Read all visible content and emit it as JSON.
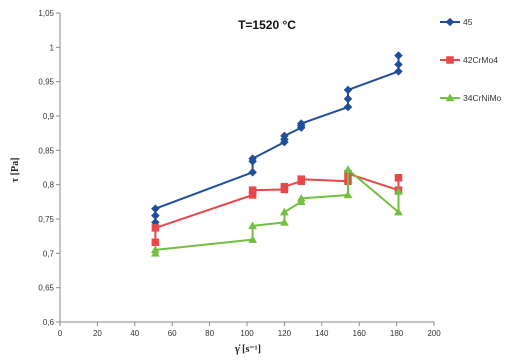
{
  "chart_data": {
    "type": "line",
    "title": "T=1520 °C",
    "xlabel": "γ̇  [s⁻¹]",
    "ylabel": "τ [Pa]",
    "xlim": [
      0,
      200
    ],
    "ylim": [
      0.6,
      1.05
    ],
    "xticks": [
      0,
      20,
      40,
      60,
      80,
      100,
      120,
      140,
      160,
      180,
      200
    ],
    "xtick_labels": [
      "0",
      "20",
      "40",
      "60",
      "80",
      "100",
      "120",
      "140",
      "160",
      "180",
      "200"
    ],
    "yticks": [
      0.6,
      0.65,
      0.7,
      0.75,
      0.8,
      0.85,
      0.9,
      0.95,
      1.0,
      1.05
    ],
    "ytick_labels": [
      "0,6",
      "0,65",
      "0,7",
      "0,75",
      "0,8",
      "0,85",
      "0,9",
      "0,95",
      "1",
      "1,05"
    ],
    "grid": false,
    "legend": "right",
    "series": [
      {
        "name": "45",
        "color": "#1F4E9B",
        "marker": "diamond",
        "x": [
          51,
          51,
          51,
          103,
          103,
          103,
          120,
          120,
          120,
          129,
          129,
          129,
          154,
          154,
          154,
          181,
          181,
          181
        ],
        "y": [
          0.745,
          0.755,
          0.765,
          0.818,
          0.834,
          0.838,
          0.862,
          0.866,
          0.871,
          0.883,
          0.886,
          0.889,
          0.913,
          0.925,
          0.938,
          0.965,
          0.975,
          0.988
        ]
      },
      {
        "name": "42CrMo4",
        "color": "#E8474B",
        "marker": "square",
        "x": [
          51,
          51,
          103,
          103,
          120,
          120,
          129,
          129,
          154,
          154,
          181,
          181
        ],
        "y": [
          0.716,
          0.737,
          0.785,
          0.792,
          0.793,
          0.797,
          0.805,
          0.808,
          0.805,
          0.816,
          0.792,
          0.81
        ]
      },
      {
        "name": "34CrNiMo",
        "color": "#72BF44",
        "marker": "triangle",
        "x": [
          51,
          51,
          103,
          103,
          120,
          120,
          129,
          129,
          154,
          154,
          181,
          181
        ],
        "y": [
          0.7,
          0.705,
          0.72,
          0.74,
          0.745,
          0.76,
          0.775,
          0.78,
          0.785,
          0.822,
          0.76,
          0.79
        ]
      }
    ]
  }
}
